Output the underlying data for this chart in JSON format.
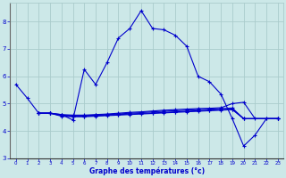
{
  "bg_color": "#cce8e8",
  "grid_color": "#aacccc",
  "line_color": "#0000cc",
  "line1_x": [
    0,
    1,
    2,
    3,
    4,
    5,
    6,
    7,
    8,
    9,
    10,
    11,
    12,
    13,
    14,
    15,
    16,
    17,
    18,
    19,
    20,
    21,
    22,
    23
  ],
  "line1_y": [
    5.7,
    5.2,
    4.65,
    4.65,
    4.6,
    4.4,
    6.25,
    5.7,
    6.5,
    7.4,
    7.75,
    8.4,
    7.75,
    7.7,
    7.5,
    7.1,
    6.0,
    5.8,
    5.35,
    4.45,
    3.45,
    3.85,
    4.45,
    4.45
  ],
  "line2_x": [
    2,
    3,
    4,
    5,
    6,
    7,
    8,
    9,
    10,
    11,
    12,
    13,
    14,
    15,
    16,
    17,
    18,
    19,
    20,
    21,
    22,
    23
  ],
  "line2_y": [
    4.65,
    4.65,
    4.6,
    4.58,
    4.58,
    4.6,
    4.62,
    4.65,
    4.68,
    4.7,
    4.73,
    4.76,
    4.78,
    4.8,
    4.82,
    4.83,
    4.85,
    5.0,
    5.05,
    4.45,
    4.45,
    4.45
  ],
  "line3_x": [
    2,
    3,
    4,
    5,
    6,
    7,
    8,
    9,
    10,
    11,
    12,
    13,
    14,
    15,
    16,
    17,
    18,
    19,
    20,
    23
  ],
  "line3_y": [
    4.65,
    4.65,
    4.58,
    4.56,
    4.56,
    4.58,
    4.6,
    4.62,
    4.65,
    4.67,
    4.7,
    4.72,
    4.74,
    4.76,
    4.78,
    4.8,
    4.82,
    4.84,
    4.45,
    4.45
  ],
  "line4_x": [
    2,
    3,
    4,
    5,
    6,
    7,
    8,
    9,
    10,
    11,
    12,
    13,
    14,
    15,
    16,
    17,
    18,
    19,
    20,
    23
  ],
  "line4_y": [
    4.65,
    4.65,
    4.56,
    4.54,
    4.54,
    4.56,
    4.58,
    4.6,
    4.62,
    4.64,
    4.66,
    4.68,
    4.7,
    4.72,
    4.74,
    4.76,
    4.78,
    4.8,
    4.45,
    4.45
  ],
  "line5_x": [
    2,
    3,
    4,
    5,
    6,
    7,
    8,
    9,
    10,
    11,
    12,
    13,
    14,
    15,
    16,
    17,
    18,
    19,
    20,
    23
  ],
  "line5_y": [
    4.65,
    4.65,
    4.54,
    4.52,
    4.52,
    4.54,
    4.56,
    4.58,
    4.6,
    4.62,
    4.64,
    4.66,
    4.68,
    4.7,
    4.72,
    4.74,
    4.76,
    4.78,
    4.45,
    4.45
  ],
  "xlabel": "Graphe des températures (°c)",
  "xlim": [
    -0.5,
    23.5
  ],
  "ylim": [
    3.0,
    8.7
  ],
  "yticks": [
    3,
    4,
    5,
    6,
    7,
    8
  ],
  "xticks": [
    0,
    1,
    2,
    3,
    4,
    5,
    6,
    7,
    8,
    9,
    10,
    11,
    12,
    13,
    14,
    15,
    16,
    17,
    18,
    19,
    20,
    21,
    22,
    23
  ]
}
